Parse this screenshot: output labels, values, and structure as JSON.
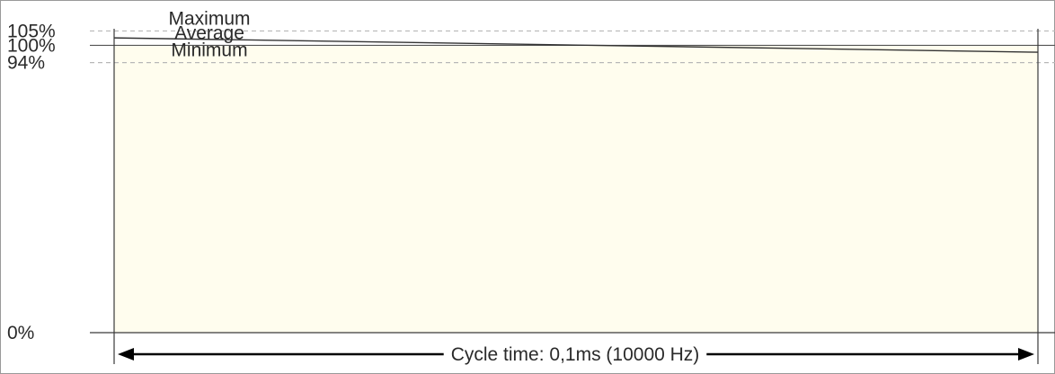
{
  "chart_data": {
    "type": "area",
    "title": "",
    "xlabel": "",
    "ylabel": "",
    "ylim": [
      0,
      115
    ],
    "grid": false,
    "colors": {
      "fill": "#fffdee",
      "axis": "#3a3a3a",
      "reference": "#555555",
      "dashed": "#b8b8b8",
      "series": "#333333",
      "frame": "#999999"
    },
    "y_ticks": [
      {
        "value": 105,
        "label": "105%",
        "style": "dashed"
      },
      {
        "value": 100,
        "label": "100%",
        "style": "solid"
      },
      {
        "value": 94,
        "label": "94%",
        "style": "dashed"
      },
      {
        "value": 0,
        "label": "0%",
        "style": "solid"
      }
    ],
    "annotations": [
      {
        "text": "Maximum",
        "value": 105
      },
      {
        "text": "Average",
        "value": 100
      },
      {
        "text": "Minimum",
        "value": 94
      }
    ],
    "x": [
      0,
      1
    ],
    "series": [
      {
        "values": [
          102.6,
          97.6
        ]
      }
    ],
    "cycle": {
      "label": "Cycle time: 0,1ms (10000 Hz)"
    }
  }
}
